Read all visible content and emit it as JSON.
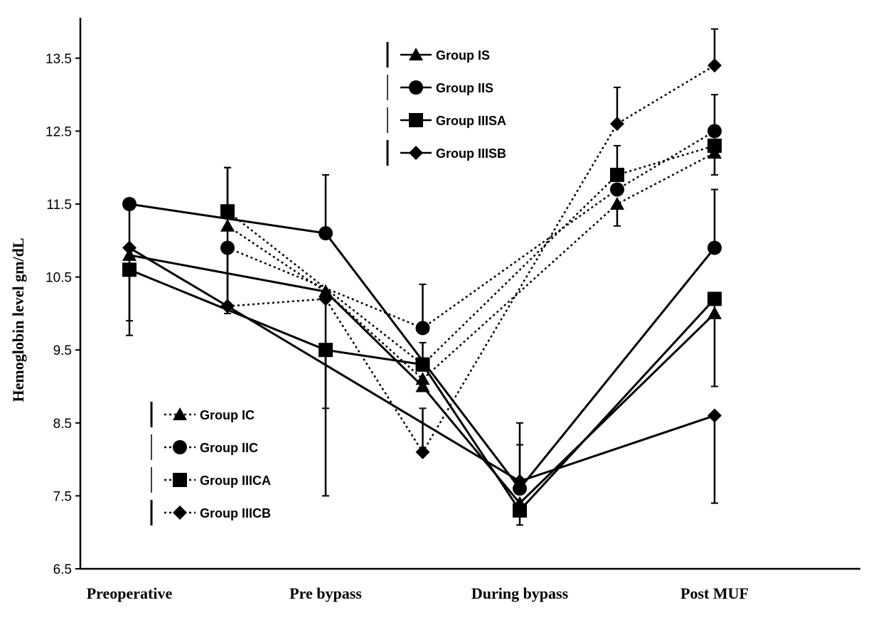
{
  "chart_data": {
    "type": "line",
    "ylabel": "Hemoglobin level  gm/dL",
    "ylim": [
      6.5,
      14.0
    ],
    "yticks": [
      "6.5",
      "7.5",
      "8.5",
      "9.5",
      "10.5",
      "11.5",
      "12.5",
      "13.5"
    ],
    "categories": [
      "Preoperative",
      "Pre bypass",
      "During bypass",
      "Post MUF"
    ],
    "x_points": [
      1,
      1.5,
      2,
      2.5,
      3,
      3.5,
      4
    ],
    "series": [
      {
        "name": "Group IS",
        "marker": "triangle",
        "style": "solid",
        "x": [
          1,
          1.5,
          2,
          2.5,
          3,
          3.5,
          4
        ],
        "values": [
          10.8,
          null,
          10.3,
          9.0,
          7.4,
          null,
          10.0
        ],
        "errors": [
          null,
          null,
          null,
          null,
          null,
          null,
          null
        ]
      },
      {
        "name": "Group IIS",
        "marker": "circle",
        "style": "solid",
        "x": [
          1,
          1.5,
          2,
          2.5,
          3,
          3.5,
          4
        ],
        "values": [
          11.5,
          null,
          11.1,
          null,
          7.6,
          null,
          10.9
        ],
        "errors": [
          [
            9.7,
            11.5
          ],
          null,
          [
            11.1,
            11.9
          ],
          null,
          [
            7.6,
            8.5
          ],
          null,
          [
            10.9,
            11.7
          ]
        ]
      },
      {
        "name": "Group IIISA",
        "marker": "square",
        "style": "solid",
        "x": [
          1,
          1.5,
          2,
          2.5,
          3,
          3.5,
          4
        ],
        "values": [
          10.6,
          null,
          9.5,
          9.3,
          7.3,
          null,
          10.2
        ],
        "errors": [
          [
            9.9,
            10.6
          ],
          null,
          [
            8.7,
            9.5
          ],
          null,
          [
            7.1,
            7.3
          ],
          null,
          [
            9.0,
            10.2
          ]
        ]
      },
      {
        "name": "Group IIISB",
        "marker": "diamond",
        "style": "solid",
        "x": [
          1,
          1.5,
          2,
          2.5,
          3,
          3.5,
          4
        ],
        "values": [
          10.9,
          10.1,
          null,
          null,
          7.7,
          null,
          8.6
        ],
        "errors": [
          null,
          [
            10.1,
            10.9
          ],
          null,
          null,
          [
            7.7,
            8.2
          ],
          null,
          [
            7.4,
            8.6
          ]
        ]
      },
      {
        "name": "Group IC",
        "marker": "triangle",
        "style": "dotted",
        "x": [
          1,
          1.5,
          2,
          2.5,
          3,
          3.5,
          4
        ],
        "values": [
          null,
          11.2,
          10.3,
          9.1,
          null,
          11.5,
          12.2
        ],
        "errors": [
          null,
          null,
          null,
          null,
          null,
          [
            11.2,
            11.5
          ],
          [
            11.9,
            12.2
          ]
        ]
      },
      {
        "name": "Group IIC",
        "marker": "circle",
        "style": "dotted",
        "x": [
          1,
          1.5,
          2,
          2.5,
          3,
          3.5,
          4
        ],
        "values": [
          null,
          10.9,
          null,
          9.8,
          null,
          11.7,
          12.5
        ],
        "errors": [
          null,
          [
            10.0,
            12.0
          ],
          null,
          [
            9.8,
            10.4
          ],
          null,
          null,
          [
            12.5,
            13.0
          ]
        ]
      },
      {
        "name": "Group IIICA",
        "marker": "square",
        "style": "dotted",
        "x": [
          1,
          1.5,
          2,
          2.5,
          3,
          3.5,
          4
        ],
        "values": [
          null,
          11.4,
          null,
          9.3,
          null,
          11.9,
          12.3
        ],
        "errors": [
          null,
          [
            11.4,
            12.0
          ],
          null,
          [
            9.3,
            9.6
          ],
          null,
          [
            11.9,
            12.3
          ],
          null
        ]
      },
      {
        "name": "Group IIICB",
        "marker": "diamond",
        "style": "dotted",
        "x": [
          1,
          1.5,
          2,
          2.5,
          3,
          3.5,
          4
        ],
        "values": [
          null,
          10.1,
          10.2,
          8.1,
          null,
          12.6,
          13.4
        ],
        "errors": [
          null,
          null,
          [
            7.5,
            10.2
          ],
          [
            8.1,
            8.7
          ],
          null,
          [
            12.6,
            13.1
          ],
          [
            13.4,
            13.9
          ]
        ]
      }
    ],
    "legend_top": [
      "Group IS",
      "Group IIS",
      "Group IIISA",
      "Group IIISB"
    ],
    "legend_bottom": [
      "Group IC",
      "Group IIC",
      "Group IIICA",
      "Group IIICB"
    ],
    "grid": false,
    "legend_placement": "top-center and lower-left"
  }
}
